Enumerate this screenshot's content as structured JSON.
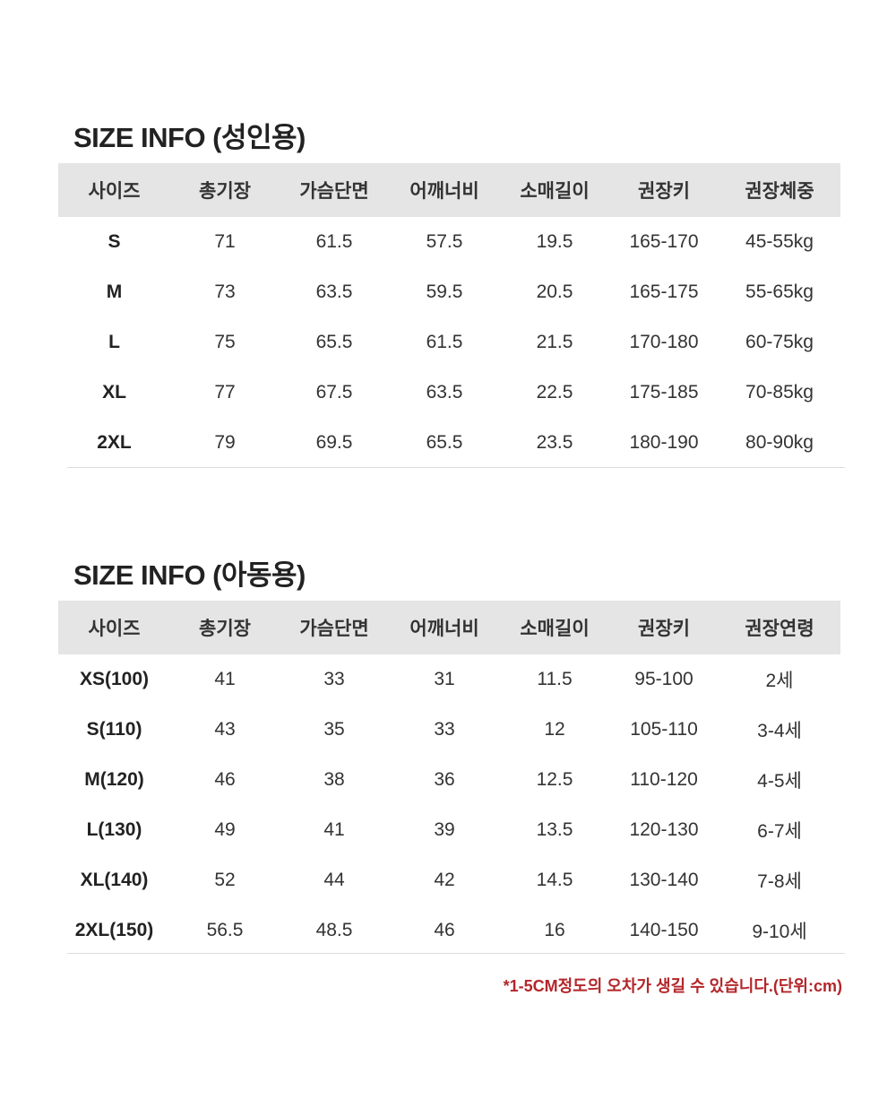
{
  "adult": {
    "title": "SIZE INFO (성인용)",
    "headers": [
      "사이즈",
      "총기장",
      "가슴단면",
      "어깨너비",
      "소매길이",
      "권장키",
      "권장체중"
    ],
    "rows": [
      [
        "S",
        "71",
        "61.5",
        "57.5",
        "19.5",
        "165-170",
        "45-55kg"
      ],
      [
        "M",
        "73",
        "63.5",
        "59.5",
        "20.5",
        "165-175",
        "55-65kg"
      ],
      [
        "L",
        "75",
        "65.5",
        "61.5",
        "21.5",
        "170-180",
        "60-75kg"
      ],
      [
        "XL",
        "77",
        "67.5",
        "63.5",
        "22.5",
        "175-185",
        "70-85kg"
      ],
      [
        "2XL",
        "79",
        "69.5",
        "65.5",
        "23.5",
        "180-190",
        "80-90kg"
      ]
    ]
  },
  "kids": {
    "title": "SIZE INFO (아동용)",
    "headers": [
      "사이즈",
      "총기장",
      "가슴단면",
      "어깨너비",
      "소매길이",
      "권장키",
      "권장연령"
    ],
    "rows": [
      [
        "XS(100)",
        "41",
        "33",
        "31",
        "11.5",
        "95-100",
        "2세"
      ],
      [
        "S(110)",
        "43",
        "35",
        "33",
        "12",
        "105-110",
        "3-4세"
      ],
      [
        "M(120)",
        "46",
        "38",
        "36",
        "12.5",
        "110-120",
        "4-5세"
      ],
      [
        "L(130)",
        "49",
        "41",
        "39",
        "13.5",
        "120-130",
        "6-7세"
      ],
      [
        "XL(140)",
        "52",
        "44",
        "42",
        "14.5",
        "130-140",
        "7-8세"
      ],
      [
        "2XL(150)",
        "56.5",
        "48.5",
        "46",
        "16",
        "140-150",
        "9-10세"
      ]
    ]
  },
  "note": "*1-5CM정도의 오차가 생길 수 있습니다.(단위:cm)",
  "colors": {
    "header_bg": "#e5e5e5",
    "note": "#b3262a"
  }
}
